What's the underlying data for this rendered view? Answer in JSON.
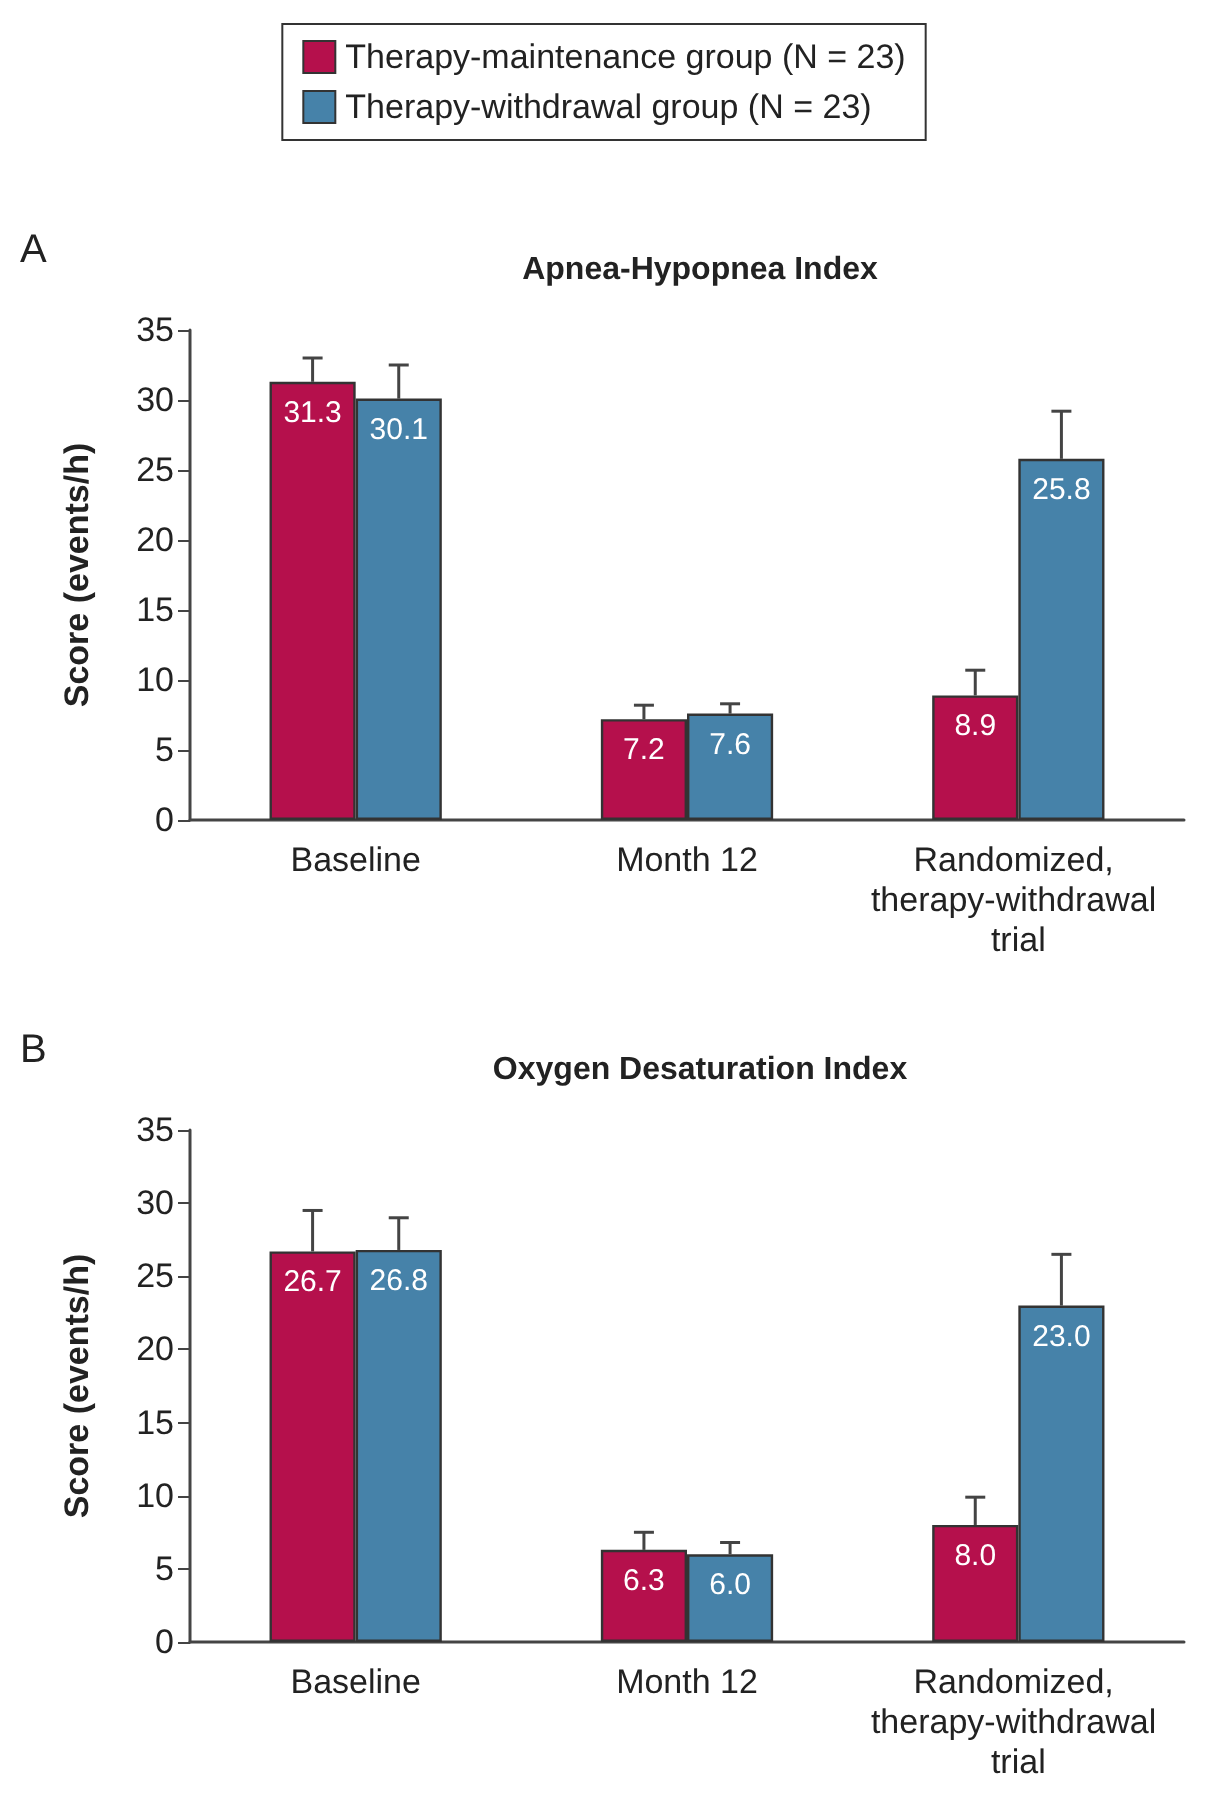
{
  "chart_data": [
    {
      "type": "bar",
      "title": "Apnea-Hypopnea Index",
      "ylabel": "Score (events/h)",
      "annotations": [
        "A"
      ],
      "categories": [
        "Baseline",
        "Month 12",
        "Randomized, therapy-withdrawal trial"
      ],
      "series": [
        {
          "name": "Therapy-maintenance group (N = 23)",
          "color": "#b5104c",
          "values": [
            31.3,
            7.2,
            8.9
          ],
          "value_labels": [
            "31.3",
            "7.2",
            "8.9"
          ],
          "errors": [
            [
              31.3,
              33.0
            ],
            [
              7.2,
              8.2
            ],
            [
              8.9,
              10.7
            ]
          ]
        },
        {
          "name": "Therapy-withdrawal group (N = 23)",
          "color": "#4682a9",
          "values": [
            30.1,
            7.6,
            25.8
          ],
          "value_labels": [
            "30.1",
            "7.6",
            "25.8"
          ],
          "errors": [
            [
              30.1,
              32.5
            ],
            [
              7.6,
              8.3
            ],
            [
              25.8,
              29.2
            ]
          ]
        }
      ],
      "ylim": [
        0,
        35
      ],
      "yticks": [
        0,
        5,
        10,
        15,
        20,
        25,
        30,
        35
      ],
      "grid": false,
      "legend": "top"
    },
    {
      "type": "bar",
      "title": "Oxygen Desaturation Index",
      "ylabel": "Score (events/h)",
      "annotations": [
        "B"
      ],
      "categories": [
        "Baseline",
        "Month 12",
        "Randomized, therapy-withdrawal trial"
      ],
      "series": [
        {
          "color": "#b5104c",
          "values": [
            26.7,
            6.3,
            8.0
          ],
          "value_labels": [
            "26.7",
            "6.3",
            "8.0"
          ],
          "errors": [
            [
              26.7,
              29.5
            ],
            [
              6.3,
              7.5
            ],
            [
              8.0,
              9.9
            ]
          ]
        },
        {
          "color": "#4682a9",
          "values": [
            26.8,
            6.0,
            23.0
          ],
          "value_labels": [
            "26.8",
            "6.0",
            "23.0"
          ],
          "errors": [
            [
              26.8,
              29.0
            ],
            [
              6.0,
              6.8
            ],
            [
              23.0,
              26.5
            ]
          ]
        }
      ],
      "ylim": [
        0,
        35
      ],
      "yticks": [
        0,
        5,
        10,
        15,
        20,
        25,
        30,
        35
      ],
      "grid": false
    }
  ]
}
